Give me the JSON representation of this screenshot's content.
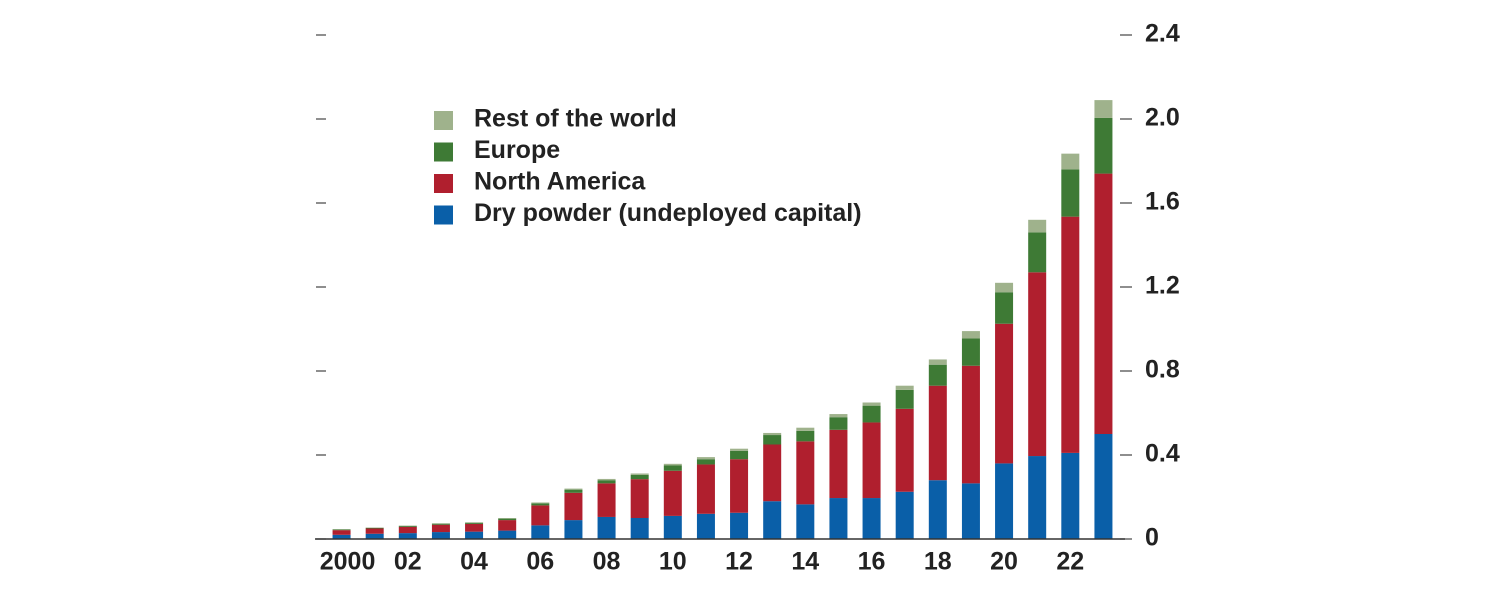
{
  "chart_data": {
    "type": "stacked_bar",
    "categories": [
      "2000",
      null,
      "02",
      null,
      "04",
      null,
      "06",
      null,
      "08",
      null,
      "10",
      null,
      "12",
      null,
      "14",
      null,
      "16",
      null,
      "18",
      null,
      "20",
      null,
      "22",
      null
    ],
    "series": [
      {
        "name": "Dry powder (undeployed capital)",
        "color": "#0a5fa8",
        "values": [
          0.02,
          0.025,
          0.028,
          0.033,
          0.035,
          0.04,
          0.065,
          0.09,
          0.105,
          0.1,
          0.11,
          0.12,
          0.125,
          0.18,
          0.165,
          0.195,
          0.195,
          0.225,
          0.28,
          0.265,
          0.36,
          0.395,
          0.41,
          0.5
        ]
      },
      {
        "name": "North America",
        "color": "#b01f2e",
        "values": [
          0.022,
          0.025,
          0.03,
          0.035,
          0.037,
          0.05,
          0.095,
          0.13,
          0.16,
          0.185,
          0.215,
          0.235,
          0.255,
          0.27,
          0.3,
          0.325,
          0.36,
          0.395,
          0.45,
          0.56,
          0.665,
          0.875,
          1.125,
          1.24
        ]
      },
      {
        "name": "Europe",
        "color": "#3e7a35",
        "values": [
          0.003,
          0.003,
          0.004,
          0.005,
          0.005,
          0.007,
          0.01,
          0.015,
          0.015,
          0.02,
          0.025,
          0.025,
          0.04,
          0.045,
          0.05,
          0.06,
          0.08,
          0.09,
          0.1,
          0.13,
          0.15,
          0.19,
          0.225,
          0.265
        ]
      },
      {
        "name": "Rest of the world",
        "color": "#9fb28c",
        "values": [
          0.002,
          0.002,
          0.002,
          0.002,
          0.003,
          0.003,
          0.004,
          0.005,
          0.006,
          0.007,
          0.008,
          0.01,
          0.01,
          0.01,
          0.015,
          0.015,
          0.015,
          0.02,
          0.025,
          0.035,
          0.045,
          0.06,
          0.075,
          0.085
        ]
      }
    ],
    "ylim": [
      0,
      2.4
    ],
    "yticks": [
      0,
      0.4,
      0.8,
      1.2,
      1.6,
      {
        "value": 2,
        "label": "2.0"
      },
      2.4
    ],
    "legend": "upper left"
  }
}
